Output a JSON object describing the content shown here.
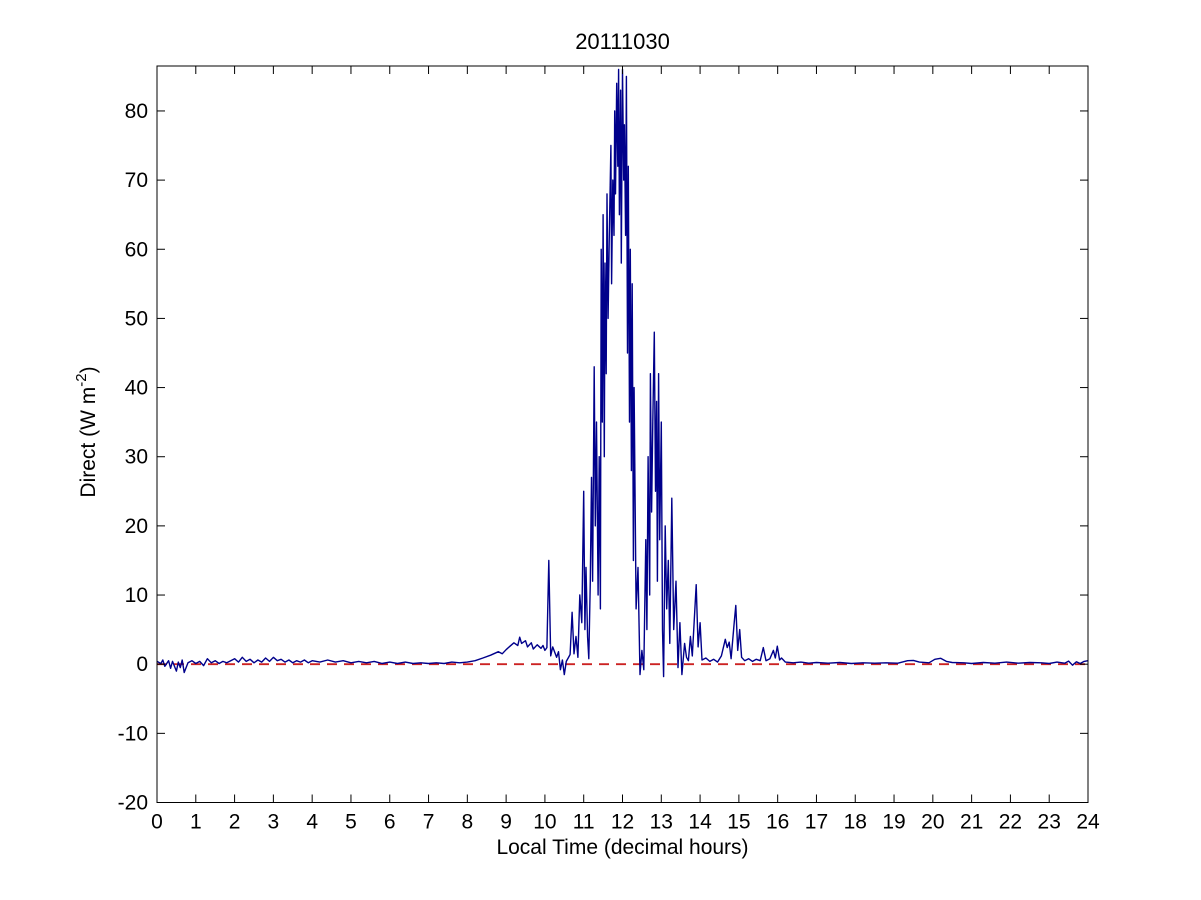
{
  "figure": {
    "title": "20111030",
    "xlabel": "Local Time (decimal hours)",
    "ylabel_base": "Direct (W m",
    "ylabel_sup": "-2",
    "ylabel_close": ")",
    "background_color": "#ffffff",
    "axis_color": "#000000"
  },
  "chart_data": {
    "type": "line",
    "title": "20111030",
    "xlabel": "Local Time (decimal hours)",
    "ylabel": "Direct (W m^-2)",
    "xlim": [
      0,
      24
    ],
    "ylim": [
      -20,
      86.5
    ],
    "xticks": [
      0,
      1,
      2,
      3,
      4,
      5,
      6,
      7,
      8,
      9,
      10,
      11,
      12,
      13,
      14,
      15,
      16,
      17,
      18,
      19,
      20,
      21,
      22,
      23,
      24
    ],
    "yticks": [
      -20,
      -10,
      0,
      10,
      20,
      30,
      40,
      50,
      60,
      70,
      80
    ],
    "grid": false,
    "legend": null,
    "box": true,
    "tick_direction": "in",
    "series": [
      {
        "name": "direct-irradiance",
        "color": "#00008B",
        "style": "solid",
        "width": 1.4,
        "points": [
          [
            0,
            0.4
          ],
          [
            0.1,
            0.1
          ],
          [
            0.15,
            0.6
          ],
          [
            0.2,
            -0.3
          ],
          [
            0.3,
            0.5
          ],
          [
            0.35,
            -0.6
          ],
          [
            0.4,
            0.4
          ],
          [
            0.5,
            -1.0
          ],
          [
            0.55,
            0.3
          ],
          [
            0.6,
            -0.5
          ],
          [
            0.65,
            0.6
          ],
          [
            0.7,
            -1.2
          ],
          [
            0.8,
            0.2
          ],
          [
            0.9,
            0.5
          ],
          [
            1.0,
            0.1
          ],
          [
            1.1,
            0.4
          ],
          [
            1.2,
            -0.2
          ],
          [
            1.3,
            0.8
          ],
          [
            1.4,
            0.2
          ],
          [
            1.5,
            0.5
          ],
          [
            1.6,
            0.1
          ],
          [
            1.7,
            0.4
          ],
          [
            1.8,
            0.2
          ],
          [
            1.9,
            0.5
          ],
          [
            2.0,
            0.8
          ],
          [
            2.1,
            0.3
          ],
          [
            2.2,
            1.0
          ],
          [
            2.3,
            0.4
          ],
          [
            2.4,
            0.7
          ],
          [
            2.5,
            0.2
          ],
          [
            2.6,
            0.6
          ],
          [
            2.7,
            0.3
          ],
          [
            2.8,
            0.9
          ],
          [
            2.9,
            0.4
          ],
          [
            3.0,
            1.0
          ],
          [
            3.1,
            0.5
          ],
          [
            3.2,
            0.7
          ],
          [
            3.3,
            0.3
          ],
          [
            3.4,
            0.6
          ],
          [
            3.5,
            0.2
          ],
          [
            3.6,
            0.5
          ],
          [
            3.7,
            0.3
          ],
          [
            3.8,
            0.6
          ],
          [
            3.9,
            0.2
          ],
          [
            4.0,
            0.5
          ],
          [
            4.2,
            0.3
          ],
          [
            4.4,
            0.6
          ],
          [
            4.6,
            0.3
          ],
          [
            4.8,
            0.5
          ],
          [
            5.0,
            0.2
          ],
          [
            5.2,
            0.4
          ],
          [
            5.4,
            0.2
          ],
          [
            5.6,
            0.4
          ],
          [
            5.8,
            0.1
          ],
          [
            6.0,
            0.3
          ],
          [
            6.2,
            0.1
          ],
          [
            6.4,
            0.3
          ],
          [
            6.6,
            0.1
          ],
          [
            6.8,
            0.2
          ],
          [
            7.0,
            0.1
          ],
          [
            7.2,
            0.2
          ],
          [
            7.4,
            0.1
          ],
          [
            7.6,
            0.3
          ],
          [
            7.8,
            0.2
          ],
          [
            8.0,
            0.3
          ],
          [
            8.2,
            0.5
          ],
          [
            8.4,
            0.9
          ],
          [
            8.6,
            1.3
          ],
          [
            8.8,
            1.8
          ],
          [
            8.9,
            1.5
          ],
          [
            9.0,
            2.1
          ],
          [
            9.1,
            2.6
          ],
          [
            9.2,
            3.1
          ],
          [
            9.3,
            2.7
          ],
          [
            9.35,
            3.9
          ],
          [
            9.4,
            3.0
          ],
          [
            9.5,
            3.4
          ],
          [
            9.55,
            2.5
          ],
          [
            9.65,
            3.1
          ],
          [
            9.7,
            2.2
          ],
          [
            9.8,
            2.8
          ],
          [
            9.9,
            2.3
          ],
          [
            9.95,
            2.7
          ],
          [
            10.0,
            2.0
          ],
          [
            10.05,
            2.4
          ],
          [
            10.1,
            15.0
          ],
          [
            10.15,
            1.2
          ],
          [
            10.2,
            2.5
          ],
          [
            10.3,
            1.0
          ],
          [
            10.35,
            1.8
          ],
          [
            10.4,
            -0.8
          ],
          [
            10.45,
            0.6
          ],
          [
            10.5,
            -1.5
          ],
          [
            10.55,
            0.4
          ],
          [
            10.6,
            0.9
          ],
          [
            10.65,
            1.4
          ],
          [
            10.7,
            7.5
          ],
          [
            10.75,
            1.5
          ],
          [
            10.8,
            4.0
          ],
          [
            10.85,
            1.0
          ],
          [
            10.9,
            10.0
          ],
          [
            10.95,
            6.0
          ],
          [
            11.0,
            25.0
          ],
          [
            11.03,
            5.0
          ],
          [
            11.06,
            14.0
          ],
          [
            11.1,
            3.9
          ],
          [
            11.13,
            0.8
          ],
          [
            11.17,
            12.0
          ],
          [
            11.2,
            27.0
          ],
          [
            11.23,
            12.0
          ],
          [
            11.27,
            43.0
          ],
          [
            11.3,
            20.0
          ],
          [
            11.33,
            35.0
          ],
          [
            11.37,
            10.0
          ],
          [
            11.4,
            30.0
          ],
          [
            11.43,
            8.0
          ],
          [
            11.45,
            60.0
          ],
          [
            11.48,
            35.0
          ],
          [
            11.5,
            65.0
          ],
          [
            11.53,
            30.0
          ],
          [
            11.55,
            58.0
          ],
          [
            11.58,
            42.0
          ],
          [
            11.6,
            68.0
          ],
          [
            11.63,
            50.0
          ],
          [
            11.66,
            62.0
          ],
          [
            11.7,
            75.0
          ],
          [
            11.72,
            55.0
          ],
          [
            11.75,
            70.0
          ],
          [
            11.78,
            62.0
          ],
          [
            11.8,
            80.0
          ],
          [
            11.82,
            68.0
          ],
          [
            11.85,
            84.0
          ],
          [
            11.88,
            72.0
          ],
          [
            11.9,
            86.0
          ],
          [
            11.92,
            65.0
          ],
          [
            11.95,
            83.0
          ],
          [
            11.97,
            58.0
          ],
          [
            12.0,
            86.0
          ],
          [
            12.03,
            70.0
          ],
          [
            12.05,
            78.0
          ],
          [
            12.08,
            62.0
          ],
          [
            12.1,
            85.0
          ],
          [
            12.13,
            45.0
          ],
          [
            12.15,
            72.0
          ],
          [
            12.18,
            35.0
          ],
          [
            12.2,
            60.0
          ],
          [
            12.23,
            28.0
          ],
          [
            12.25,
            55.0
          ],
          [
            12.28,
            15.0
          ],
          [
            12.3,
            40.0
          ],
          [
            12.35,
            8.0
          ],
          [
            12.4,
            14.0
          ],
          [
            12.45,
            -1.5
          ],
          [
            12.5,
            2.0
          ],
          [
            12.55,
            -0.8
          ],
          [
            12.6,
            18.0
          ],
          [
            12.63,
            5.0
          ],
          [
            12.66,
            30.0
          ],
          [
            12.7,
            10.0
          ],
          [
            12.72,
            42.0
          ],
          [
            12.75,
            22.0
          ],
          [
            12.78,
            35.0
          ],
          [
            12.82,
            48.0
          ],
          [
            12.85,
            25.0
          ],
          [
            12.88,
            38.0
          ],
          [
            12.9,
            12.0
          ],
          [
            12.93,
            42.0
          ],
          [
            12.96,
            18.0
          ],
          [
            13.0,
            35.0
          ],
          [
            13.03,
            5.0
          ],
          [
            13.06,
            -1.8
          ],
          [
            13.1,
            20.0
          ],
          [
            13.14,
            8.0
          ],
          [
            13.18,
            15.0
          ],
          [
            13.22,
            3.0
          ],
          [
            13.27,
            24.0
          ],
          [
            13.32,
            5.0
          ],
          [
            13.38,
            12.0
          ],
          [
            13.43,
            -0.5
          ],
          [
            13.48,
            6.0
          ],
          [
            13.53,
            -1.5
          ],
          [
            13.6,
            3.0
          ],
          [
            13.65,
            1.0
          ],
          [
            13.7,
            0.5
          ],
          [
            13.75,
            4.0
          ],
          [
            13.8,
            1.2
          ],
          [
            13.9,
            11.5
          ],
          [
            13.95,
            2.5
          ],
          [
            14.0,
            6.0
          ],
          [
            14.05,
            0.6
          ],
          [
            14.15,
            0.9
          ],
          [
            14.25,
            0.4
          ],
          [
            14.35,
            0.7
          ],
          [
            14.45,
            0.3
          ],
          [
            14.55,
            1.2
          ],
          [
            14.65,
            3.6
          ],
          [
            14.7,
            2.4
          ],
          [
            14.75,
            3.2
          ],
          [
            14.8,
            0.8
          ],
          [
            14.88,
            6.0
          ],
          [
            14.92,
            8.5
          ],
          [
            14.97,
            2.0
          ],
          [
            15.02,
            5.0
          ],
          [
            15.07,
            1.0
          ],
          [
            15.15,
            0.5
          ],
          [
            15.25,
            0.8
          ],
          [
            15.35,
            0.4
          ],
          [
            15.45,
            0.7
          ],
          [
            15.55,
            0.5
          ],
          [
            15.63,
            2.4
          ],
          [
            15.7,
            0.5
          ],
          [
            15.8,
            0.8
          ],
          [
            15.89,
            2.0
          ],
          [
            15.94,
            0.9
          ],
          [
            15.99,
            2.6
          ],
          [
            16.05,
            0.6
          ],
          [
            16.1,
            0.9
          ],
          [
            16.2,
            0.3
          ],
          [
            16.4,
            0.2
          ],
          [
            16.6,
            0.3
          ],
          [
            16.8,
            0.15
          ],
          [
            17.0,
            0.25
          ],
          [
            17.3,
            0.15
          ],
          [
            17.6,
            0.25
          ],
          [
            17.9,
            0.1
          ],
          [
            18.2,
            0.2
          ],
          [
            18.5,
            0.15
          ],
          [
            18.8,
            0.2
          ],
          [
            19.1,
            0.15
          ],
          [
            19.35,
            0.5
          ],
          [
            19.5,
            0.55
          ],
          [
            19.65,
            0.3
          ],
          [
            19.9,
            0.2
          ],
          [
            20.05,
            0.7
          ],
          [
            20.2,
            0.85
          ],
          [
            20.35,
            0.4
          ],
          [
            20.5,
            0.25
          ],
          [
            20.8,
            0.2
          ],
          [
            21.0,
            0.1
          ],
          [
            21.3,
            0.25
          ],
          [
            21.6,
            0.15
          ],
          [
            21.9,
            0.3
          ],
          [
            22.2,
            0.15
          ],
          [
            22.5,
            0.25
          ],
          [
            22.8,
            0.2
          ],
          [
            23.0,
            0.1
          ],
          [
            23.2,
            0.3
          ],
          [
            23.4,
            0.15
          ],
          [
            23.5,
            0.45
          ],
          [
            23.6,
            -0.15
          ],
          [
            23.7,
            0.35
          ],
          [
            23.8,
            0.1
          ],
          [
            23.9,
            0.4
          ],
          [
            24.0,
            0.5
          ]
        ]
      },
      {
        "name": "zero-reference",
        "color": "#CC2222",
        "style": "dashed",
        "width": 1.8,
        "points": [
          [
            0,
            0
          ],
          [
            24,
            0
          ]
        ]
      }
    ]
  }
}
